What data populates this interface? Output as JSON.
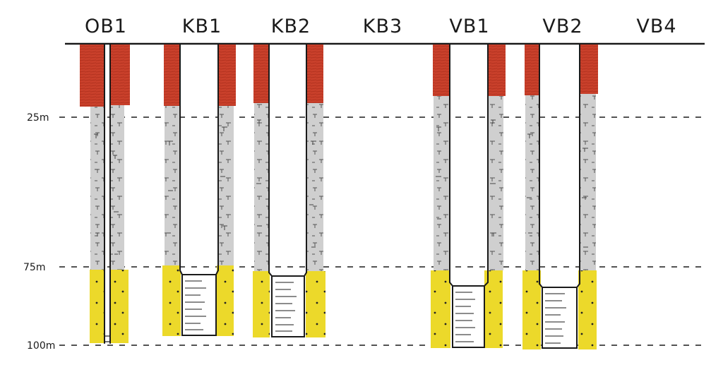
{
  "colors": {
    "overburden": "#c9402b",
    "limestone": "#cfcfcf",
    "sandstone": "#ecd92a",
    "line": "#1a1a1a"
  },
  "depth_markers": [
    {
      "id": "25m",
      "label": "25m",
      "depth": 25
    },
    {
      "id": "75m",
      "label": "75m",
      "depth": 75
    },
    {
      "id": "100m",
      "label": "100m",
      "depth": 100
    }
  ],
  "wells": [
    {
      "id": "ob1",
      "label": "OB1",
      "type": "observation",
      "has_casing": true,
      "has_screen": false
    },
    {
      "id": "kb1",
      "label": "KB1",
      "type": "borehole",
      "has_casing": true,
      "has_screen": true
    },
    {
      "id": "kb2",
      "label": "KB2",
      "type": "borehole",
      "has_casing": true,
      "has_screen": true
    },
    {
      "id": "kb3",
      "label": "KB3",
      "type": "borehole",
      "has_casing": false,
      "has_screen": false
    },
    {
      "id": "vb1",
      "label": "VB1",
      "type": "borehole",
      "has_casing": true,
      "has_screen": true
    },
    {
      "id": "vb2",
      "label": "VB2",
      "type": "borehole",
      "has_casing": true,
      "has_screen": true
    },
    {
      "id": "vb4",
      "label": "VB4",
      "type": "borehole",
      "has_casing": false,
      "has_screen": false
    }
  ]
}
